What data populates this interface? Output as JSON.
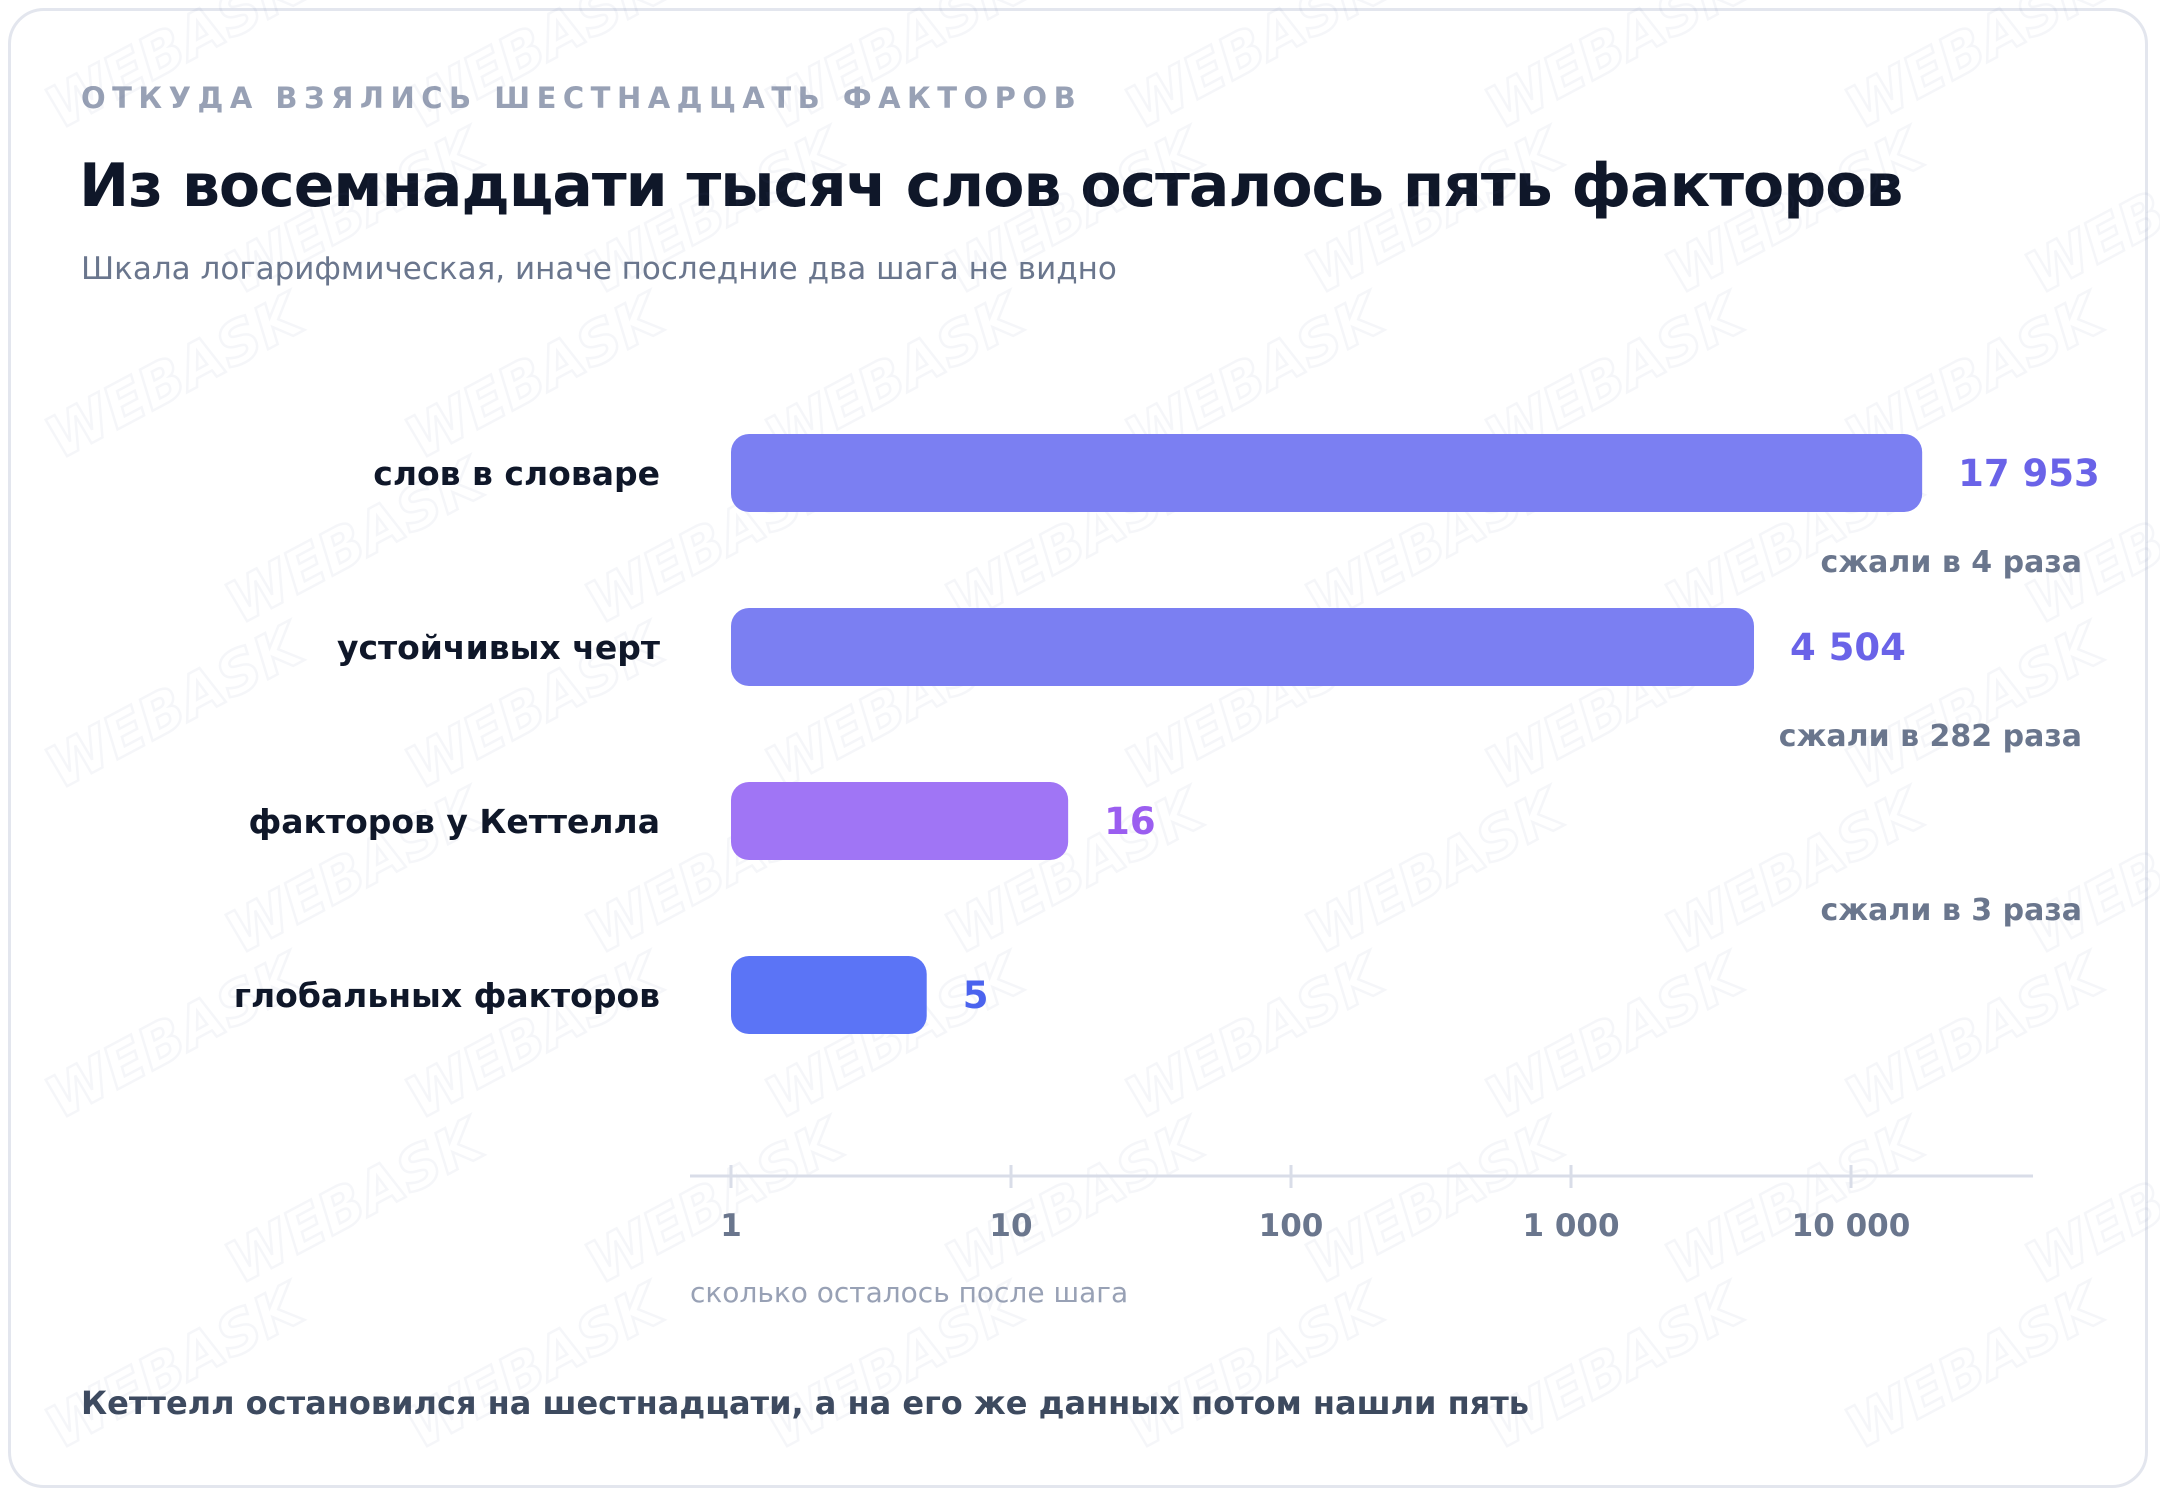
{
  "kicker": "ОТКУДА ВЗЯЛИСЬ ШЕСТНАДЦАТЬ ФАКТОРОВ",
  "title": "Из восемнадцати тысяч слов осталось пять факторов",
  "subtitle": "Шкала логарифмическая, иначе последние два шага не видно",
  "footer": "Кеттелл остановился на шестнадцати, а на его же данных потом нашли пять",
  "watermark": "WEBASK",
  "chart_data": {
    "type": "bar",
    "orientation": "horizontal",
    "scale": "log",
    "xlim": [
      1,
      35000
    ],
    "categories": [
      "слов в словаре",
      "устойчивых черт",
      "факторов у Кеттелла",
      "глобальных факторов"
    ],
    "values": [
      17953,
      4504,
      16,
      5
    ],
    "value_labels": [
      "17 953",
      "4 504",
      "16",
      "5"
    ],
    "bar_colors": [
      "#7b7ff2",
      "#7b7ff2",
      "#a075f5",
      "#5b74f6"
    ],
    "label_colors": [
      "#6a63e8",
      "#6a63e8",
      "#9b5ef0",
      "#4b63ee"
    ],
    "annotations": [
      "сжали в 4 раза",
      "сжали в 282 раза",
      "сжали в 3 раза"
    ],
    "xticks": [
      1,
      10,
      100,
      1000,
      10000
    ],
    "xtick_labels": [
      "1",
      "10",
      "100",
      "1 000",
      "10 000"
    ],
    "xlabel": "сколько осталось после шага",
    "grid": false
  }
}
